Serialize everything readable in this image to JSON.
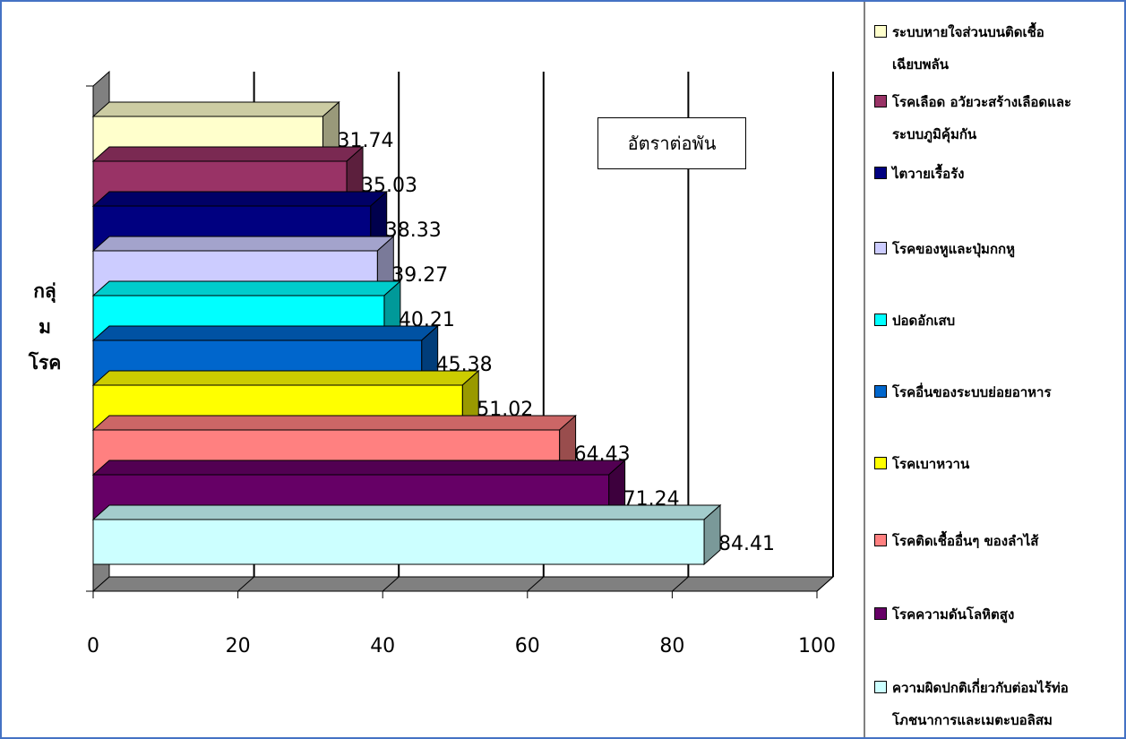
{
  "chart_data": {
    "type": "bar",
    "orientation": "horizontal",
    "three_d": true,
    "title": "",
    "xlabel": "",
    "ylabel": "กลุ่มโรค",
    "ylabel_lines": [
      "กลุ่",
      "ม",
      "โรค"
    ],
    "unit_label": "อัตราต่อพัน",
    "xlim": [
      0,
      100
    ],
    "xticks": [
      0,
      20,
      40,
      60,
      80,
      100
    ],
    "xtick_labels": [
      "0",
      "20",
      "40",
      "60",
      "80",
      "100"
    ],
    "grid": "vertical",
    "legend_position": "right",
    "categories": [
      "ความผิดปกติเกี่ยวกับต่อมไร้ท่อ โภชนาการและเมตะบอลิสม",
      "โรคความดันโลหิตสูง",
      "โรคติดเชื้ออื่นๆ ของลำไส้",
      "โรคเบาหวาน",
      "โรคอื่นของระบบย่อยอาหาร",
      "ปอดอักเสบ",
      "โรคของหูและปุ่มกกหู",
      "ไตวายเรื้อรัง",
      "โรคเลือด อวัยวะสร้างเลือดและระบบภูมิคุ้มกัน",
      "ระบบหายใจส่วนบนติดเชื้อเฉียบพลัน"
    ],
    "values": [
      84.41,
      71.24,
      64.43,
      51.02,
      45.38,
      40.21,
      39.27,
      38.33,
      35.03,
      31.74
    ],
    "value_labels": [
      "84.41",
      "71.24",
      "64.43",
      "51.02",
      "45.38",
      "40.21",
      "39.27",
      "38.33",
      "35.03",
      "31.74"
    ],
    "colors": [
      "#ccffff",
      "#660066",
      "#ff8080",
      "#ffff00",
      "#0066cc",
      "#00ffff",
      "#ccccff",
      "#000080",
      "#993366",
      "#ffffcc"
    ]
  },
  "legend": {
    "items": [
      {
        "lines": [
          "ระบบหายใจส่วนบนติดเชื้อ",
          "เฉียบพลัน"
        ],
        "color": "#ffffcc"
      },
      {
        "lines": [
          "โรคเลือด อวัยวะสร้างเลือดและ",
          "ระบบภูมิคุ้มกัน"
        ],
        "color": "#993366"
      },
      {
        "lines": [
          "ไตวายเรื้อรัง"
        ],
        "color": "#000080"
      },
      {
        "lines": [
          "โรคของหูและปุ่มกกหู"
        ],
        "color": "#ccccff"
      },
      {
        "lines": [
          "ปอดอักเสบ"
        ],
        "color": "#00ffff"
      },
      {
        "lines": [
          "โรคอื่นของระบบย่อยอาหาร"
        ],
        "color": "#0066cc"
      },
      {
        "lines": [
          "โรคเบาหวาน"
        ],
        "color": "#ffff00"
      },
      {
        "lines": [
          "โรคติดเชื้ออื่นๆ ของลำไส้"
        ],
        "color": "#ff8080"
      },
      {
        "lines": [
          "โรคความดันโลหิตสูง"
        ],
        "color": "#660066"
      },
      {
        "lines": [
          "ความผิดปกติเกี่ยวกับต่อมไร้ท่อ",
          "โภชนาการและเมตะบอลิสม"
        ],
        "color": "#ccffff"
      }
    ]
  }
}
